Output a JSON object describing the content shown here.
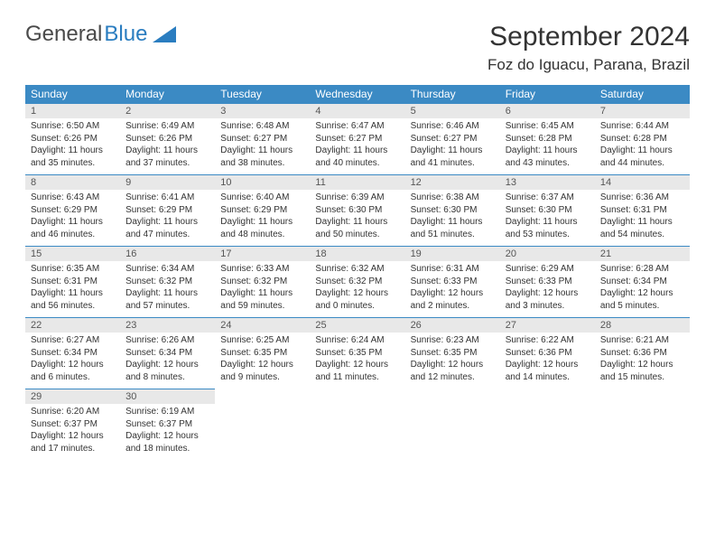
{
  "brand": {
    "part1": "General",
    "part2": "Blue"
  },
  "title": "September 2024",
  "location": "Foz do Iguacu, Parana, Brazil",
  "colors": {
    "header_bg": "#3b8ac4",
    "header_text": "#ffffff",
    "daynum_bg": "#e8e8e8",
    "border": "#3b8ac4",
    "text": "#333333",
    "brand_gray": "#4a4a4a",
    "brand_blue": "#2a7dc0"
  },
  "day_names": [
    "Sunday",
    "Monday",
    "Tuesday",
    "Wednesday",
    "Thursday",
    "Friday",
    "Saturday"
  ],
  "weeks": [
    [
      {
        "n": "1",
        "sr": "Sunrise: 6:50 AM",
        "ss": "Sunset: 6:26 PM",
        "dl": "Daylight: 11 hours and 35 minutes."
      },
      {
        "n": "2",
        "sr": "Sunrise: 6:49 AM",
        "ss": "Sunset: 6:26 PM",
        "dl": "Daylight: 11 hours and 37 minutes."
      },
      {
        "n": "3",
        "sr": "Sunrise: 6:48 AM",
        "ss": "Sunset: 6:27 PM",
        "dl": "Daylight: 11 hours and 38 minutes."
      },
      {
        "n": "4",
        "sr": "Sunrise: 6:47 AM",
        "ss": "Sunset: 6:27 PM",
        "dl": "Daylight: 11 hours and 40 minutes."
      },
      {
        "n": "5",
        "sr": "Sunrise: 6:46 AM",
        "ss": "Sunset: 6:27 PM",
        "dl": "Daylight: 11 hours and 41 minutes."
      },
      {
        "n": "6",
        "sr": "Sunrise: 6:45 AM",
        "ss": "Sunset: 6:28 PM",
        "dl": "Daylight: 11 hours and 43 minutes."
      },
      {
        "n": "7",
        "sr": "Sunrise: 6:44 AM",
        "ss": "Sunset: 6:28 PM",
        "dl": "Daylight: 11 hours and 44 minutes."
      }
    ],
    [
      {
        "n": "8",
        "sr": "Sunrise: 6:43 AM",
        "ss": "Sunset: 6:29 PM",
        "dl": "Daylight: 11 hours and 46 minutes."
      },
      {
        "n": "9",
        "sr": "Sunrise: 6:41 AM",
        "ss": "Sunset: 6:29 PM",
        "dl": "Daylight: 11 hours and 47 minutes."
      },
      {
        "n": "10",
        "sr": "Sunrise: 6:40 AM",
        "ss": "Sunset: 6:29 PM",
        "dl": "Daylight: 11 hours and 48 minutes."
      },
      {
        "n": "11",
        "sr": "Sunrise: 6:39 AM",
        "ss": "Sunset: 6:30 PM",
        "dl": "Daylight: 11 hours and 50 minutes."
      },
      {
        "n": "12",
        "sr": "Sunrise: 6:38 AM",
        "ss": "Sunset: 6:30 PM",
        "dl": "Daylight: 11 hours and 51 minutes."
      },
      {
        "n": "13",
        "sr": "Sunrise: 6:37 AM",
        "ss": "Sunset: 6:30 PM",
        "dl": "Daylight: 11 hours and 53 minutes."
      },
      {
        "n": "14",
        "sr": "Sunrise: 6:36 AM",
        "ss": "Sunset: 6:31 PM",
        "dl": "Daylight: 11 hours and 54 minutes."
      }
    ],
    [
      {
        "n": "15",
        "sr": "Sunrise: 6:35 AM",
        "ss": "Sunset: 6:31 PM",
        "dl": "Daylight: 11 hours and 56 minutes."
      },
      {
        "n": "16",
        "sr": "Sunrise: 6:34 AM",
        "ss": "Sunset: 6:32 PM",
        "dl": "Daylight: 11 hours and 57 minutes."
      },
      {
        "n": "17",
        "sr": "Sunrise: 6:33 AM",
        "ss": "Sunset: 6:32 PM",
        "dl": "Daylight: 11 hours and 59 minutes."
      },
      {
        "n": "18",
        "sr": "Sunrise: 6:32 AM",
        "ss": "Sunset: 6:32 PM",
        "dl": "Daylight: 12 hours and 0 minutes."
      },
      {
        "n": "19",
        "sr": "Sunrise: 6:31 AM",
        "ss": "Sunset: 6:33 PM",
        "dl": "Daylight: 12 hours and 2 minutes."
      },
      {
        "n": "20",
        "sr": "Sunrise: 6:29 AM",
        "ss": "Sunset: 6:33 PM",
        "dl": "Daylight: 12 hours and 3 minutes."
      },
      {
        "n": "21",
        "sr": "Sunrise: 6:28 AM",
        "ss": "Sunset: 6:34 PM",
        "dl": "Daylight: 12 hours and 5 minutes."
      }
    ],
    [
      {
        "n": "22",
        "sr": "Sunrise: 6:27 AM",
        "ss": "Sunset: 6:34 PM",
        "dl": "Daylight: 12 hours and 6 minutes."
      },
      {
        "n": "23",
        "sr": "Sunrise: 6:26 AM",
        "ss": "Sunset: 6:34 PM",
        "dl": "Daylight: 12 hours and 8 minutes."
      },
      {
        "n": "24",
        "sr": "Sunrise: 6:25 AM",
        "ss": "Sunset: 6:35 PM",
        "dl": "Daylight: 12 hours and 9 minutes."
      },
      {
        "n": "25",
        "sr": "Sunrise: 6:24 AM",
        "ss": "Sunset: 6:35 PM",
        "dl": "Daylight: 12 hours and 11 minutes."
      },
      {
        "n": "26",
        "sr": "Sunrise: 6:23 AM",
        "ss": "Sunset: 6:35 PM",
        "dl": "Daylight: 12 hours and 12 minutes."
      },
      {
        "n": "27",
        "sr": "Sunrise: 6:22 AM",
        "ss": "Sunset: 6:36 PM",
        "dl": "Daylight: 12 hours and 14 minutes."
      },
      {
        "n": "28",
        "sr": "Sunrise: 6:21 AM",
        "ss": "Sunset: 6:36 PM",
        "dl": "Daylight: 12 hours and 15 minutes."
      }
    ],
    [
      {
        "n": "29",
        "sr": "Sunrise: 6:20 AM",
        "ss": "Sunset: 6:37 PM",
        "dl": "Daylight: 12 hours and 17 minutes."
      },
      {
        "n": "30",
        "sr": "Sunrise: 6:19 AM",
        "ss": "Sunset: 6:37 PM",
        "dl": "Daylight: 12 hours and 18 minutes."
      },
      null,
      null,
      null,
      null,
      null
    ]
  ]
}
